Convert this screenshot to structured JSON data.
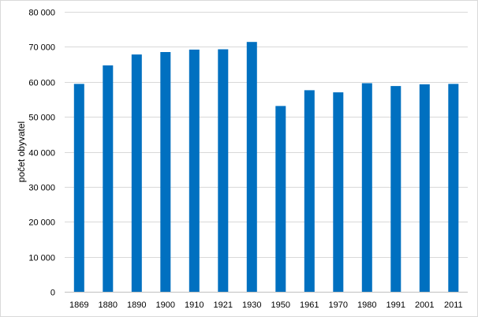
{
  "chart_data": {
    "type": "bar",
    "title": "",
    "xlabel": "",
    "ylabel": "počet obyvatel",
    "categories": [
      "1869",
      "1880",
      "1890",
      "1900",
      "1910",
      "1921",
      "1930",
      "1950",
      "1961",
      "1970",
      "1980",
      "1991",
      "2001",
      "2011"
    ],
    "values": [
      59400,
      64700,
      67800,
      68500,
      69200,
      69300,
      71400,
      53100,
      57600,
      57000,
      59600,
      58800,
      59300,
      59400
    ],
    "ylim": [
      0,
      80000
    ],
    "yticks": [
      0,
      10000,
      20000,
      30000,
      40000,
      50000,
      60000,
      70000,
      80000
    ],
    "ytick_labels": [
      "0",
      "10 000",
      "20 000",
      "30 000",
      "40 000",
      "50 000",
      "60 000",
      "70 000",
      "80 000"
    ],
    "grid": true,
    "legend": "none",
    "bar_color": "#0070C0"
  }
}
